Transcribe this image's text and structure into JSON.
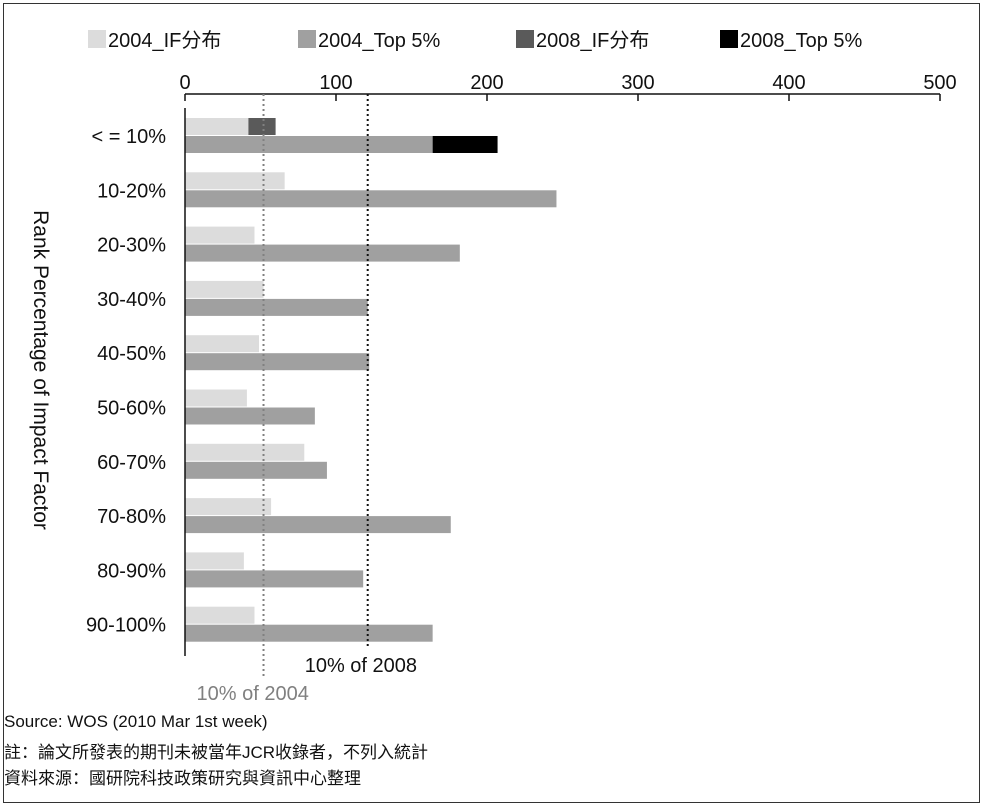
{
  "chart_data": {
    "type": "bar",
    "orientation": "horizontal",
    "x_axis_position": "top",
    "xlim": [
      0,
      500
    ],
    "xticks": [
      "0",
      "100",
      "200",
      "300",
      "400",
      "500"
    ],
    "ylabel": "Rank Percentage of Impact Factor",
    "categories": [
      "< = 10%",
      "10-20%",
      "20-30%",
      "30-40%",
      "40-50%",
      "50-60%",
      "60-70%",
      "70-80%",
      "80-90%",
      "90-100%"
    ],
    "series": [
      {
        "name": "2004_IF分布",
        "color": "#dcdcdc",
        "values": [
          42,
          66,
          46,
          52,
          49,
          41,
          79,
          57,
          39,
          46
        ]
      },
      {
        "name": "2004_Top 5%",
        "color": "#a0a0a0",
        "values": [
          164,
          246,
          182,
          121,
          122,
          86,
          94,
          176,
          118,
          164
        ]
      },
      {
        "name": "2008_IF分布",
        "color": "#5a5a5a",
        "values": [
          60,
          0,
          0,
          0,
          0,
          0,
          0,
          0,
          0,
          0
        ]
      },
      {
        "name": "2008_Top 5%",
        "color": "#000000",
        "values": [
          207,
          0,
          0,
          0,
          0,
          0,
          0,
          0,
          0,
          0
        ]
      }
    ],
    "reference_lines": [
      {
        "label": "10% of 2004",
        "value": 52,
        "color": "#808080"
      },
      {
        "label": "10% of 2008",
        "value": 121,
        "color": "#111111"
      }
    ],
    "legend_position": "top"
  },
  "footer": {
    "source": "Source: WOS (2010 Mar 1st week)",
    "note": "註：論文所發表的期刊未被當年JCR收錄者，不列入統計",
    "data_source": "資料來源：國研院科技政策研究與資訊中心整理"
  }
}
